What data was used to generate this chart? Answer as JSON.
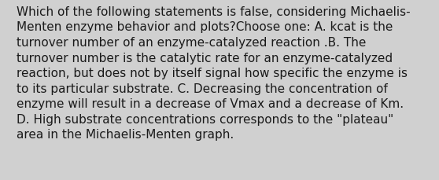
{
  "lines": [
    "Which of the following statements is false, considering Michaelis-",
    "Menten enzyme behavior and plots?Choose one: A. kcat is the",
    "turnover number of an enzyme-catalyzed reaction .B. The",
    "turnover number is the catalytic rate for an enzyme-catalyzed",
    "reaction, but does not by itself signal how specific the enzyme is",
    "to its particular substrate. C. Decreasing the concentration of",
    "enzyme will result in a decrease of Vmax and a decrease of Km.",
    "D. High substrate concentrations corresponds to the \"plateau\"",
    "area in the Michaelis-Menten graph."
  ],
  "background_color": "#d0d0d0",
  "text_color": "#1a1a1a",
  "font_size": 11.0,
  "fig_width": 5.58,
  "fig_height": 2.3
}
